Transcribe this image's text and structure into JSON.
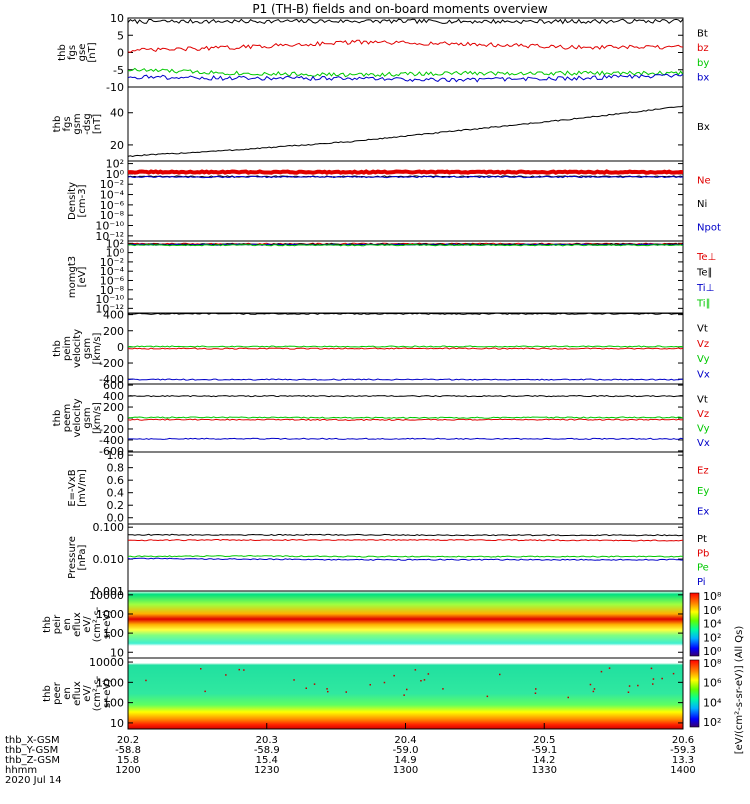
{
  "title": "P1 (TH-B) fields and on-board moments overview",
  "colors": {
    "black": "#000000",
    "red": "#e00000",
    "green": "#00c800",
    "blue": "#0000c8"
  },
  "chart_data": [
    {
      "type": "line",
      "ylabel": [
        "thb",
        "fgs",
        "gse",
        "[nT]"
      ],
      "yticks": [
        "10",
        "5",
        "0",
        "-5",
        "-10"
      ],
      "ylim": [
        -10,
        10
      ],
      "scale": "linear",
      "series": [
        {
          "name": "Bt",
          "color": "black",
          "values": [
            9.0,
            9.0,
            9.1,
            9.0,
            9.0,
            9.1
          ]
        },
        {
          "name": "bz",
          "color": "red",
          "values": [
            0.5,
            1.5,
            3.0,
            2.5,
            1.5,
            1.5
          ]
        },
        {
          "name": "by",
          "color": "green",
          "values": [
            -5.0,
            -6.0,
            -6.5,
            -6.0,
            -6.0,
            -6.0
          ]
        },
        {
          "name": "bx",
          "color": "blue",
          "values": [
            -7.0,
            -7.5,
            -7.5,
            -8.0,
            -7.5,
            -6.5
          ]
        }
      ]
    },
    {
      "type": "line",
      "ylabel": [
        "thb",
        "fgs",
        "gsm",
        "-dsg",
        "[nT]"
      ],
      "yticks": [
        "40",
        "20"
      ],
      "ylim": [
        10,
        56
      ],
      "scale": "linear",
      "series": [
        {
          "name": "Bx",
          "color": "black",
          "values": [
            13,
            17,
            22,
            29,
            36,
            44
          ]
        }
      ]
    },
    {
      "type": "line",
      "ylabel": [
        "Density",
        "[cm-3]"
      ],
      "yticks": [
        "10²",
        "10⁰",
        "10⁻²",
        "10⁻⁴",
        "10⁻⁶",
        "10⁻⁸",
        "10⁻¹⁰",
        "10⁻¹²"
      ],
      "ylim": [
        -13,
        2.5
      ],
      "scale": "log",
      "series": [
        {
          "name": "Ne",
          "color": "red",
          "values": [
            0.35,
            0.35,
            0.35,
            0.35,
            0.35,
            0.35
          ]
        },
        {
          "name": "Ni",
          "color": "black",
          "values": [
            -0.5,
            -0.5,
            -0.5,
            -0.5,
            -0.5,
            -0.5
          ]
        },
        {
          "name": "Npot",
          "color": "blue",
          "values": [
            -0.6,
            -0.6,
            -0.6,
            -0.6,
            -0.6,
            -0.6
          ]
        }
      ]
    },
    {
      "type": "line",
      "ylabel": [
        "momgt3",
        "[eV]"
      ],
      "yticks": [
        "10²",
        "10⁰",
        "10⁻²",
        "10⁻⁴",
        "10⁻⁶",
        "10⁻⁸",
        "10⁻¹⁰",
        "10⁻¹²"
      ],
      "ylim": [
        -13,
        2.5
      ],
      "scale": "log",
      "series": [
        {
          "name": "Te⊥",
          "color": "red",
          "values": [
            1.9,
            1.9,
            1.9,
            1.9,
            1.9,
            1.9
          ]
        },
        {
          "name": "Te∥",
          "color": "black",
          "values": [
            1.8,
            1.8,
            1.8,
            1.8,
            1.8,
            1.8
          ]
        },
        {
          "name": "Ti⊥",
          "color": "blue",
          "values": [
            1.7,
            1.7,
            1.7,
            1.7,
            1.7,
            1.7
          ]
        },
        {
          "name": "Ti∥",
          "color": "green",
          "values": [
            1.6,
            1.6,
            1.6,
            1.6,
            1.6,
            1.6
          ]
        }
      ]
    },
    {
      "type": "line",
      "ylabel": [
        "thb",
        "peim",
        "velocity",
        "gsm",
        "[km/s]"
      ],
      "yticks": [
        "400",
        "200",
        "0",
        "-200",
        "-400"
      ],
      "ylim": [
        -460,
        420
      ],
      "scale": "linear",
      "series": [
        {
          "name": "Vt",
          "color": "black",
          "values": [
            410,
            410,
            410,
            410,
            410,
            410
          ]
        },
        {
          "name": "Vz",
          "color": "red",
          "values": [
            -20,
            -22,
            -20,
            -20,
            -22,
            -20
          ]
        },
        {
          "name": "Vy",
          "color": "green",
          "values": [
            5,
            5,
            5,
            5,
            5,
            5
          ]
        },
        {
          "name": "Vx",
          "color": "blue",
          "values": [
            -405,
            -405,
            -405,
            -405,
            -405,
            -405
          ]
        }
      ]
    },
    {
      "type": "line",
      "ylabel": [
        "thb",
        "peem",
        "velocity",
        "gsm",
        "[km/s]"
      ],
      "yticks": [
        "600",
        "400",
        "200",
        "0",
        "-200",
        "-400",
        "-600"
      ],
      "ylim": [
        -620,
        620
      ],
      "scale": "linear",
      "series": [
        {
          "name": "Vt",
          "color": "black",
          "values": [
            400,
            400,
            400,
            400,
            400,
            400
          ]
        },
        {
          "name": "Vz",
          "color": "red",
          "values": [
            -30,
            -30,
            -35,
            -30,
            -30,
            -30
          ]
        },
        {
          "name": "Vy",
          "color": "green",
          "values": [
            10,
            10,
            5,
            5,
            10,
            10
          ]
        },
        {
          "name": "Vx",
          "color": "blue",
          "values": [
            -380,
            -380,
            -380,
            -380,
            -380,
            -380
          ]
        }
      ]
    },
    {
      "type": "line",
      "ylabel": [
        "E=-VxB",
        "[mV/m]"
      ],
      "yticks": [
        "1.0",
        "0.8",
        "0.6",
        "0.4",
        "0.2",
        "0.0"
      ],
      "ylim": [
        -0.1,
        1.05
      ],
      "scale": "linear",
      "series": [
        {
          "name": "Ez",
          "color": "red",
          "values": []
        },
        {
          "name": "Ey",
          "color": "green",
          "values": []
        },
        {
          "name": "Ex",
          "color": "blue",
          "values": []
        }
      ]
    },
    {
      "type": "line",
      "ylabel": [
        "Pressure",
        "[nPa]"
      ],
      "yticks": [
        "0.100",
        "0.010",
        "0.001"
      ],
      "ylim": [
        -3.0,
        -0.9
      ],
      "scale": "log",
      "series": [
        {
          "name": "Pt",
          "color": "black",
          "values": [
            -1.24,
            -1.24,
            -1.24,
            -1.25,
            -1.25,
            -1.25
          ]
        },
        {
          "name": "Pb",
          "color": "red",
          "values": [
            -1.41,
            -1.4,
            -1.4,
            -1.4,
            -1.41,
            -1.42
          ]
        },
        {
          "name": "Pe",
          "color": "green",
          "values": [
            -1.92,
            -1.9,
            -1.92,
            -1.92,
            -1.92,
            -1.92
          ]
        },
        {
          "name": "Pi",
          "color": "blue",
          "values": [
            -1.98,
            -2.0,
            -2.02,
            -2.02,
            -2.02,
            -2.02
          ]
        }
      ]
    },
    {
      "type": "heatmap",
      "ylabel": [
        "thb",
        "peir",
        "en",
        "eflux",
        "eV/",
        "(cm²-s-",
        "sr-eV)"
      ],
      "yticks": [
        "10000",
        "1000",
        "100",
        "10"
      ],
      "ylim": [
        0.7,
        4.2
      ],
      "scale": "log",
      "colorbar_ticks": [
        "10⁸",
        "10⁶",
        "10⁴",
        "10²",
        "10⁰"
      ]
    },
    {
      "type": "heatmap",
      "ylabel": [
        "thb",
        "peer",
        "en",
        "eflux",
        "eV/",
        "(cm²-s-",
        "sr-eV)"
      ],
      "yticks": [
        "10000",
        "1000",
        "100",
        "10"
      ],
      "ylim": [
        0.7,
        4.2
      ],
      "scale": "log",
      "colorbar_ticks": [
        "10⁸",
        "10⁶",
        "10⁴",
        "10²"
      ]
    }
  ],
  "colorbar_unit": "[eV/(cm²-s-sr-eV)] (All Qs)",
  "bottom_axis": {
    "rows": [
      {
        "label": "thb_X-GSM",
        "values": [
          "20.2",
          "20.3",
          "20.4",
          "20.5",
          "20.6"
        ]
      },
      {
        "label": "thb_Y-GSM",
        "values": [
          "-58.8",
          "-58.9",
          "-59.0",
          "-59.1",
          "-59.3"
        ]
      },
      {
        "label": "thb_Z-GSM",
        "values": [
          "15.8",
          "15.4",
          "14.9",
          "14.2",
          "13.3"
        ]
      },
      {
        "label": "hhmm",
        "values": [
          "1200",
          "1230",
          "1300",
          "1330",
          "1400"
        ]
      }
    ],
    "date": "2020 Jul 14"
  }
}
